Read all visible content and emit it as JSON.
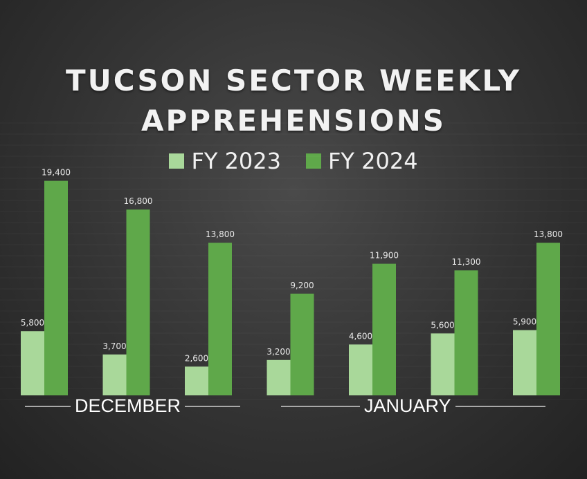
{
  "chart_data": {
    "type": "bar",
    "title_lines": [
      "TUCSON SECTOR WEEKLY",
      "APPREHENSIONS"
    ],
    "series": [
      {
        "name": "FY 2023",
        "values": [
          5800,
          3700,
          2600,
          3200,
          4600,
          5600,
          5900
        ],
        "labels": [
          "5,800",
          "3,700",
          "2,600",
          "3,200",
          "4,600",
          "5,600",
          "5,900"
        ],
        "color": "#a9d89a"
      },
      {
        "name": "FY 2024",
        "values": [
          19400,
          16800,
          13800,
          9200,
          11900,
          11300,
          13800
        ],
        "labels": [
          "19,400",
          "16,800",
          "13,800",
          "9,200",
          "11,900",
          "11,300",
          "13,800"
        ],
        "color": "#5fa84a"
      }
    ],
    "groups": [
      {
        "label": "DECEMBER",
        "count": 3
      },
      {
        "label": "JANUARY",
        "count": 4
      }
    ],
    "ylim": [
      0,
      20000
    ],
    "grid": false,
    "legend_position": "top"
  }
}
